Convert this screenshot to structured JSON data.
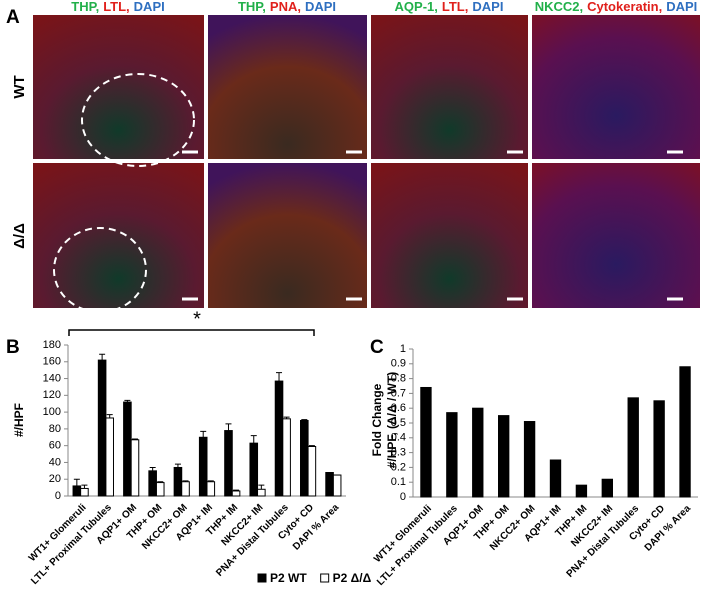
{
  "figure": {
    "panel_labels": [
      "A",
      "B",
      "C"
    ],
    "panel_a": {
      "columns": [
        {
          "parts": [
            {
              "text": "THP,",
              "color": "#22b04a"
            },
            {
              "text": "LTL,",
              "color": "#e0201c"
            },
            {
              "text": "DAPI",
              "color": "#2e6fc0"
            }
          ]
        },
        {
          "parts": [
            {
              "text": "THP,",
              "color": "#22b04a"
            },
            {
              "text": "PNA,",
              "color": "#e0201c"
            },
            {
              "text": "DAPI",
              "color": "#2e6fc0"
            }
          ]
        },
        {
          "parts": [
            {
              "text": "AQP-1,",
              "color": "#22b04a"
            },
            {
              "text": "LTL,",
              "color": "#e0201c"
            },
            {
              "text": "DAPI",
              "color": "#2e6fc0"
            }
          ]
        },
        {
          "parts": [
            {
              "text": "NKCC2,",
              "color": "#22b04a"
            },
            {
              "text": "Cytokeratin,",
              "color": "#e0201c"
            },
            {
              "text": "DAPI",
              "color": "#2e6fc0"
            }
          ]
        }
      ],
      "rows": [
        "WT",
        "Δ/Δ"
      ]
    }
  },
  "chart_data": [
    {
      "type": "bar",
      "ylabel": [
        "#/HPF"
      ],
      "annotation": "*",
      "categories": [
        "WT1+ Glomeruli",
        "LTL+ Proximal Tubules",
        "AQP1+ OM",
        "THP+ OM",
        "NKCC2+ OM",
        "AQP1+ IM",
        "THP+ IM",
        "NKCC2+ IM",
        "PNA+ Distal Tubules",
        "Cyto+ CD",
        "DAPI % Area"
      ],
      "series": [
        {
          "name": "P2 WT",
          "color": "#000000",
          "values": [
            12,
            162,
            112,
            30,
            34,
            70,
            78,
            63,
            137,
            90,
            28
          ],
          "errors": [
            8,
            7,
            2,
            4,
            4,
            7,
            8,
            9,
            10,
            1,
            0
          ]
        },
        {
          "name": "P2 Δ/Δ",
          "color": "#ffffff",
          "values": [
            9,
            93,
            67,
            16,
            17,
            17,
            6,
            8,
            92,
            59,
            25
          ],
          "errors": [
            4,
            4,
            1,
            1,
            1,
            1,
            1,
            5,
            2,
            1,
            0
          ]
        }
      ],
      "ylim": [
        0,
        180
      ],
      "yticks": [
        0,
        20,
        40,
        60,
        80,
        100,
        120,
        140,
        160,
        180
      ],
      "legend": "bottom"
    },
    {
      "type": "bar",
      "ylabel": [
        "Fold Change",
        "#/HPF, (Δ/Δ / WT)"
      ],
      "categories": [
        "WT1+ Glomeruli",
        "LTL+ Proximal Tubules",
        "AQP1+ OM",
        "THP+ OM",
        "NKCC2+ OM",
        "AQP1+ IM",
        "THP+ IM",
        "NKCC2+ IM",
        "PNA+ Distal Tubules",
        "Cyto+ CD",
        "DAPI % Area"
      ],
      "series": [
        {
          "color": "#000000",
          "values": [
            0.74,
            0.57,
            0.6,
            0.55,
            0.51,
            0.25,
            0.08,
            0.12,
            0.67,
            0.65,
            0.88
          ]
        }
      ],
      "ylim": [
        0,
        1
      ],
      "yticks": [
        0,
        0.1,
        0.2,
        0.3,
        0.4,
        0.5,
        0.6,
        0.7,
        0.8,
        0.9,
        1
      ]
    }
  ]
}
